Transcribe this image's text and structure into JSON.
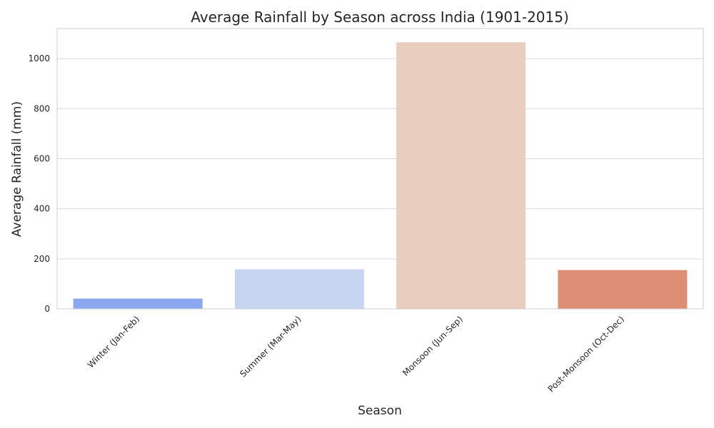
{
  "chart_data": {
    "type": "bar",
    "title": "Average Rainfall by Season across India (1901-2015)",
    "xlabel": "Season",
    "ylabel": "Average Rainfall (mm)",
    "categories": [
      "Winter (Jan-Feb)",
      "Summer (Mar-May)",
      "Monsoon (Jun-Sep)",
      "Post-Monsoon (Oct-Dec)"
    ],
    "values": [
      41,
      158,
      1065,
      155
    ],
    "colors": [
      "#8aa7f0",
      "#c8d5f1",
      "#e9cdbf",
      "#df8e76"
    ],
    "ylim": [
      0,
      1120
    ],
    "yticks": [
      0,
      200,
      400,
      600,
      800,
      1000
    ],
    "grid": "horizontal",
    "legend": "none"
  }
}
